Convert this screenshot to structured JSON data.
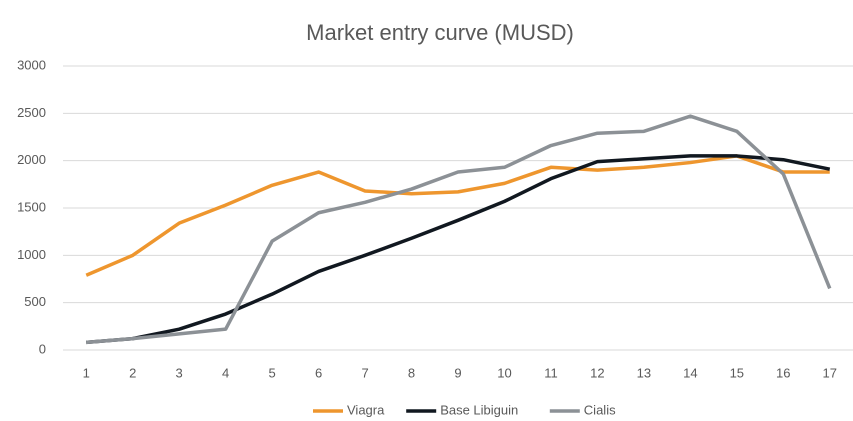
{
  "chart_data": {
    "type": "line",
    "title": "Market entry curve (MUSD)",
    "categories": [
      "1",
      "2",
      "3",
      "4",
      "5",
      "6",
      "7",
      "8",
      "9",
      "10",
      "11",
      "12",
      "13",
      "14",
      "15",
      "16",
      "17"
    ],
    "series": [
      {
        "name": "Viagra",
        "color": "#ee962e",
        "values": [
          790,
          1000,
          1340,
          1530,
          1740,
          1880,
          1680,
          1650,
          1670,
          1760,
          1930,
          1900,
          1930,
          1980,
          2050,
          1880,
          1880
        ]
      },
      {
        "name": "Base Libiguin",
        "color": "#111820",
        "values": [
          80,
          120,
          220,
          380,
          590,
          830,
          1000,
          1180,
          1370,
          1570,
          1810,
          1990,
          2020,
          2050,
          2050,
          2010,
          1910
        ]
      },
      {
        "name": "Cialis",
        "color": "#8c9196",
        "values": [
          80,
          120,
          170,
          220,
          1150,
          1450,
          1560,
          1700,
          1880,
          1930,
          2160,
          2290,
          2310,
          2470,
          2310,
          1860,
          650
        ]
      }
    ],
    "ylim": [
      0,
      3000
    ],
    "yticks": [
      0,
      500,
      1000,
      1500,
      2000,
      2500,
      3000
    ],
    "grid": true,
    "legend": "bottom"
  }
}
